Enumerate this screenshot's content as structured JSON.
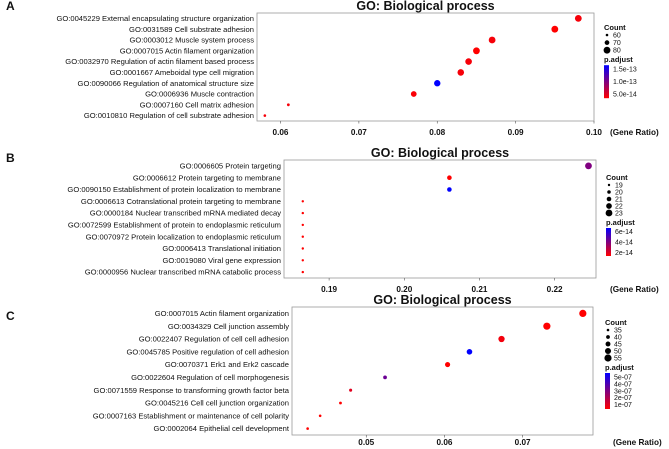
{
  "chart_data": [
    {
      "panel": "A",
      "type": "scatter",
      "title": "GO: Biological process",
      "xlabel": "(Gene Ratio)",
      "xticks": [
        "0.06",
        "0.07",
        "0.08",
        "0.09",
        "0.10"
      ],
      "xlim": [
        0.057,
        0.1
      ],
      "categories": [
        "GO:0045229 External encapsulating structure organization",
        "GO:0031589 Cell substrate adhesion",
        "GO:0003012 Muscle system process",
        "GO:0007015 Actin filament organization",
        "GO:0032970 Regulation of actin filament based process",
        "GO:0001667 Ameboidal type cell migration",
        "GO:0090066 Regulation of anatomical structure size",
        "GO:0006936 Muscle contraction",
        "GO:0007160 Cell matrix adhesion",
        "GO:0010810 Regulation of cell substrate adhesion"
      ],
      "gene_ratio": [
        0.098,
        0.095,
        0.087,
        0.085,
        0.084,
        0.083,
        0.08,
        0.077,
        0.061,
        0.058
      ],
      "count": [
        85,
        84,
        81,
        80,
        79,
        79,
        78,
        75,
        61,
        58
      ],
      "p_adjust": [
        3e-14,
        2.5e-14,
        3e-14,
        2.5e-14,
        3e-14,
        3e-14,
        1.6e-13,
        2.8e-14,
        3e-14,
        3e-14
      ],
      "legend": {
        "size_title": "Count",
        "size_values": [
          60,
          70,
          80
        ],
        "size_labels": [
          "60",
          "70",
          "80"
        ],
        "color_title": "p.adjust",
        "color_labels": [
          "1.5e-13",
          "1.0e-13",
          "5.0e-14"
        ],
        "color_range": [
          2.5e-14,
          1.6e-13
        ]
      }
    },
    {
      "panel": "B",
      "type": "scatter",
      "title": "GO: Biological process",
      "xlabel": "(Gene Ratio)",
      "xticks": [
        "0.19",
        "0.20",
        "0.21",
        "0.22"
      ],
      "xlim": [
        0.184,
        0.2255
      ],
      "categories": [
        "GO:0006605 Protein targeting",
        "GO:0006612 Protein targeting to membrane",
        "GO:0090150 Establishment of protein localization to membrane",
        "GO:0006613 Cotranslational protein targeting to membrane",
        "GO:0000184 Nuclear transcribed mRNA mediated decay",
        "GO:0072599 Establishment of protein to endoplasmic reticulum",
        "GO:0070972 Protein localization to endoplasmic reticulum",
        "GO:0006413 Translational initiation",
        "GO:0019080 Viral gene expression",
        "GO:0000956 Nuclear transcribed mRNA catabolic process"
      ],
      "gene_ratio": [
        0.2245,
        0.206,
        0.206,
        0.1865,
        0.1865,
        0.1865,
        0.1865,
        0.1865,
        0.1865,
        0.1865
      ],
      "count": [
        23,
        21,
        21,
        19,
        19,
        19,
        19,
        19,
        19,
        19
      ],
      "p_adjust": [
        4e-14,
        1.5e-14,
        6.5e-14,
        1.5e-14,
        1.5e-14,
        1.5e-14,
        1.5e-14,
        1.5e-14,
        1.5e-14,
        1.5e-14
      ],
      "legend": {
        "size_title": "Count",
        "size_values": [
          19,
          20,
          21,
          22,
          23
        ],
        "size_labels": [
          "19",
          "20",
          "21",
          "22",
          "23"
        ],
        "color_title": "p.adjust",
        "color_labels": [
          "6e-14",
          "4e-14",
          "2e-14"
        ],
        "color_range": [
          1.5e-14,
          6.5e-14
        ]
      }
    },
    {
      "panel": "C",
      "type": "scatter",
      "title": "GO: Biological process",
      "xlabel": "(Gene Ratio)",
      "xticks": [
        "0.05",
        "0.06",
        "0.07"
      ],
      "xlim": [
        0.0405,
        0.079
      ],
      "categories": [
        "GO:0007015 Actin filament organization",
        "GO:0034329 Cell junction assembly",
        "GO:0022407 Regulation of cell cell adhesion",
        "GO:0045785 Positive regulation of cell adhesion",
        "GO:0070371 Erk1 and Erk2 cascade",
        "GO:0022604 Regulation of cell morphogenesis",
        "GO:0071559 Response to transforming growth factor beta",
        "GO:0045216 Cell cell junction organization",
        "GO:0007163 Establishment or maintenance of cell polarity",
        "GO:0002064 Epithelial cell development"
      ],
      "gene_ratio": [
        0.0777,
        0.0731,
        0.0673,
        0.0632,
        0.0604,
        0.0524,
        0.048,
        0.0467,
        0.0441,
        0.0425
      ],
      "count": [
        59,
        56,
        51,
        48,
        46,
        40,
        37,
        36,
        34,
        33
      ],
      "p_adjust": [
        1e-07,
        1e-07,
        1.2e-07,
        5.3e-07,
        1e-07,
        3.5e-07,
        1.5e-07,
        1e-07,
        1e-07,
        1e-07
      ],
      "legend": {
        "size_title": "Count",
        "size_values": [
          35,
          40,
          45,
          50,
          55
        ],
        "size_labels": [
          "35",
          "40",
          "45",
          "50",
          "55"
        ],
        "color_title": "p.adjust",
        "color_labels": [
          "5e-07",
          "4e-07",
          "3e-07",
          "2e-07",
          "1e-07"
        ],
        "color_range": [
          1e-07,
          5.3e-07
        ]
      }
    }
  ],
  "colors": {
    "low_p": "#ff0000",
    "high_p": "#0000ff"
  }
}
